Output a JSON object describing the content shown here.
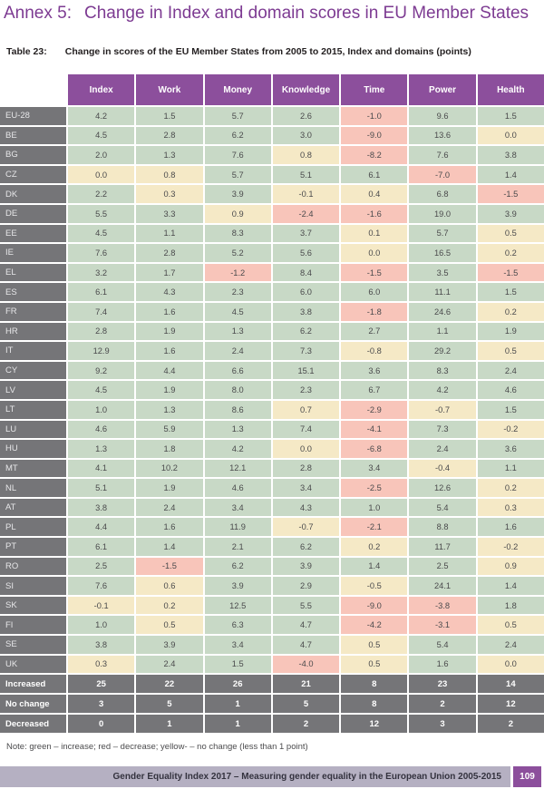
{
  "header": {
    "annex_label": "Annex 5:",
    "title": "Change in Index and domain scores in EU Member States"
  },
  "table": {
    "caption_label": "Table 23:",
    "caption_text": "Change in scores of the EU Member States from 2005 to 2015, Index and domains (points)",
    "columns": [
      "Index",
      "Work",
      "Money",
      "Knowledge",
      "Time",
      "Power",
      "Health"
    ],
    "rows": [
      {
        "label": "EU-28",
        "values": [
          "4.2",
          "1.5",
          "5.7",
          "2.6",
          "-1.0",
          "9.6",
          "1.5"
        ]
      },
      {
        "label": "BE",
        "values": [
          "4.5",
          "2.8",
          "6.2",
          "3.0",
          "-9.0",
          "13.6",
          "0.0"
        ]
      },
      {
        "label": "BG",
        "values": [
          "2.0",
          "1.3",
          "7.6",
          "0.8",
          "-8.2",
          "7.6",
          "3.8"
        ]
      },
      {
        "label": "CZ",
        "values": [
          "0.0",
          "0.8",
          "5.7",
          "5.1",
          "6.1",
          "-7.0",
          "1.4"
        ]
      },
      {
        "label": "DK",
        "values": [
          "2.2",
          "0.3",
          "3.9",
          "-0.1",
          "0.4",
          "6.8",
          "-1.5"
        ]
      },
      {
        "label": "DE",
        "values": [
          "5.5",
          "3.3",
          "0.9",
          "-2.4",
          "-1.6",
          "19.0",
          "3.9"
        ]
      },
      {
        "label": "EE",
        "values": [
          "4.5",
          "1.1",
          "8.3",
          "3.7",
          "0.1",
          "5.7",
          "0.5"
        ]
      },
      {
        "label": "IE",
        "values": [
          "7.6",
          "2.8",
          "5.2",
          "5.6",
          "0.0",
          "16.5",
          "0.2"
        ]
      },
      {
        "label": "EL",
        "values": [
          "3.2",
          "1.7",
          "-1.2",
          "8.4",
          "-1.5",
          "3.5",
          "-1.5"
        ]
      },
      {
        "label": "ES",
        "values": [
          "6.1",
          "4.3",
          "2.3",
          "6.0",
          "6.0",
          "11.1",
          "1.5"
        ]
      },
      {
        "label": "FR",
        "values": [
          "7.4",
          "1.6",
          "4.5",
          "3.8",
          "-1.8",
          "24.6",
          "0.2"
        ]
      },
      {
        "label": "HR",
        "values": [
          "2.8",
          "1.9",
          "1.3",
          "6.2",
          "2.7",
          "1.1",
          "1.9"
        ]
      },
      {
        "label": "IT",
        "values": [
          "12.9",
          "1.6",
          "2.4",
          "7.3",
          "-0.8",
          "29.2",
          "0.5"
        ]
      },
      {
        "label": "CY",
        "values": [
          "9.2",
          "4.4",
          "6.6",
          "15.1",
          "3.6",
          "8.3",
          "2.4"
        ]
      },
      {
        "label": "LV",
        "values": [
          "4.5",
          "1.9",
          "8.0",
          "2.3",
          "6.7",
          "4.2",
          "4.6"
        ]
      },
      {
        "label": "LT",
        "values": [
          "1.0",
          "1.3",
          "8.6",
          "0.7",
          "-2.9",
          "-0.7",
          "1.5"
        ]
      },
      {
        "label": "LU",
        "values": [
          "4.6",
          "5.9",
          "1.3",
          "7.4",
          "-4.1",
          "7.3",
          "-0.2"
        ]
      },
      {
        "label": "HU",
        "values": [
          "1.3",
          "1.8",
          "4.2",
          "0.0",
          "-6.8",
          "2.4",
          "3.6"
        ]
      },
      {
        "label": "MT",
        "values": [
          "4.1",
          "10.2",
          "12.1",
          "2.8",
          "3.4",
          "-0.4",
          "1.1"
        ]
      },
      {
        "label": "NL",
        "values": [
          "5.1",
          "1.9",
          "4.6",
          "3.4",
          "-2.5",
          "12.6",
          "0.2"
        ]
      },
      {
        "label": "AT",
        "values": [
          "3.8",
          "2.4",
          "3.4",
          "4.3",
          "1.0",
          "5.4",
          "0.3"
        ]
      },
      {
        "label": "PL",
        "values": [
          "4.4",
          "1.6",
          "11.9",
          "-0.7",
          "-2.1",
          "8.8",
          "1.6"
        ]
      },
      {
        "label": "PT",
        "values": [
          "6.1",
          "1.4",
          "2.1",
          "6.2",
          "0.2",
          "11.7",
          "-0.2"
        ]
      },
      {
        "label": "RO",
        "values": [
          "2.5",
          "-1.5",
          "6.2",
          "3.9",
          "1.4",
          "2.5",
          "0.9"
        ]
      },
      {
        "label": "SI",
        "values": [
          "7.6",
          "0.6",
          "3.9",
          "2.9",
          "-0.5",
          "24.1",
          "1.4"
        ]
      },
      {
        "label": "SK",
        "values": [
          "-0.1",
          "0.2",
          "12.5",
          "5.5",
          "-9.0",
          "-3.8",
          "1.8"
        ]
      },
      {
        "label": "FI",
        "values": [
          "1.0",
          "0.5",
          "6.3",
          "4.7",
          "-4.2",
          "-3.1",
          "0.5"
        ]
      },
      {
        "label": "SE",
        "values": [
          "3.8",
          "3.9",
          "3.4",
          "4.7",
          "0.5",
          "5.4",
          "2.4"
        ]
      },
      {
        "label": "UK",
        "values": [
          "0.3",
          "2.4",
          "1.5",
          "-4.0",
          "0.5",
          "1.6",
          "0.0"
        ]
      }
    ],
    "summary": [
      {
        "label": "Increased",
        "values": [
          "25",
          "22",
          "26",
          "21",
          "8",
          "23",
          "14"
        ]
      },
      {
        "label": "No change",
        "values": [
          "3",
          "5",
          "1",
          "5",
          "8",
          "2",
          "12"
        ]
      },
      {
        "label": "Decreased",
        "values": [
          "0",
          "1",
          "1",
          "2",
          "12",
          "3",
          "2"
        ]
      }
    ],
    "legend_rule": {
      "increase_min": 1,
      "decrease_max": -1
    }
  },
  "note": "Note: green – increase; red – decrease; yellow- – no change (less than 1 point)",
  "footer": {
    "text": "Gender Equality Index 2017 – Measuring gender equality in the European Union 2005-2015",
    "page_number": "109"
  },
  "colors": {
    "title_purple": "#7d3b92",
    "header_purple": "#8c4f9c",
    "row_label_gray": "#757578",
    "increase_green": "#c8d9c6",
    "decrease_red": "#f8c5ba",
    "no_change_yellow": "#f5e9c6",
    "footer_bar": "#b5b0c2"
  }
}
